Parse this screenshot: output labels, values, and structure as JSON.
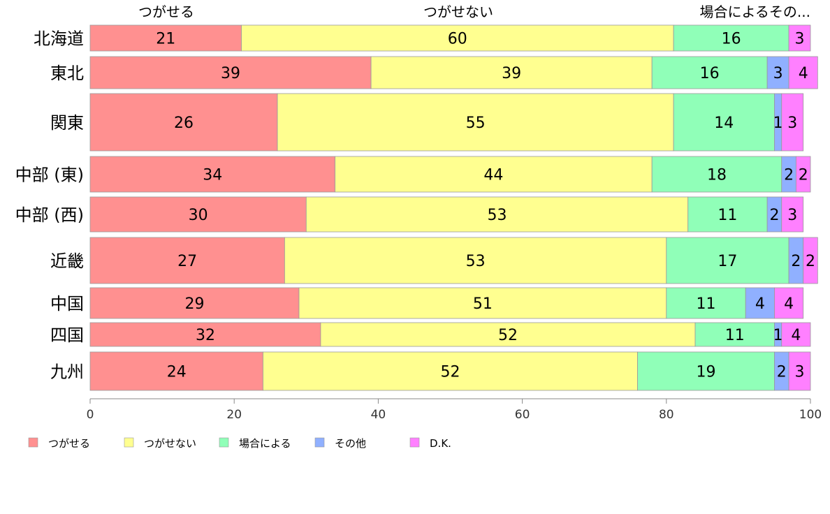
{
  "chart_data": {
    "type": "bar",
    "orientation": "horizontal",
    "stacked": true,
    "categories": [
      "北海道",
      "東北",
      "関東",
      "中部 (東)",
      "中部 (西)",
      "近畿",
      "中国",
      "四国",
      "九州"
    ],
    "series": [
      {
        "name": "つがせる",
        "color": "#ff9090",
        "values": [
          21,
          39,
          26,
          34,
          30,
          27,
          29,
          32,
          24
        ]
      },
      {
        "name": "つがせない",
        "color": "#ffff90",
        "values": [
          60,
          39,
          55,
          44,
          53,
          53,
          51,
          52,
          52
        ]
      },
      {
        "name": "場合による",
        "color": "#90ffb8",
        "values": [
          16,
          16,
          14,
          18,
          11,
          17,
          11,
          11,
          19
        ]
      },
      {
        "name": "その他",
        "color": "#90b0ff",
        "values": [
          0,
          3,
          1,
          2,
          2,
          2,
          4,
          1,
          2
        ]
      },
      {
        "name": "D.K.",
        "color": "#ff80ff",
        "values": [
          3,
          4,
          3,
          2,
          3,
          2,
          4,
          4,
          3
        ]
      }
    ],
    "top_labels": [
      "つがせる",
      "つがせない",
      "場合によるその..."
    ],
    "xlim": [
      0,
      100
    ],
    "xticks": [
      "0",
      "20",
      "40",
      "60",
      "80",
      "100"
    ],
    "grid": false,
    "legend_position": "bottom",
    "legend": [
      "つがせる",
      "つがせない",
      "場合による",
      "その他",
      "D.K."
    ]
  }
}
